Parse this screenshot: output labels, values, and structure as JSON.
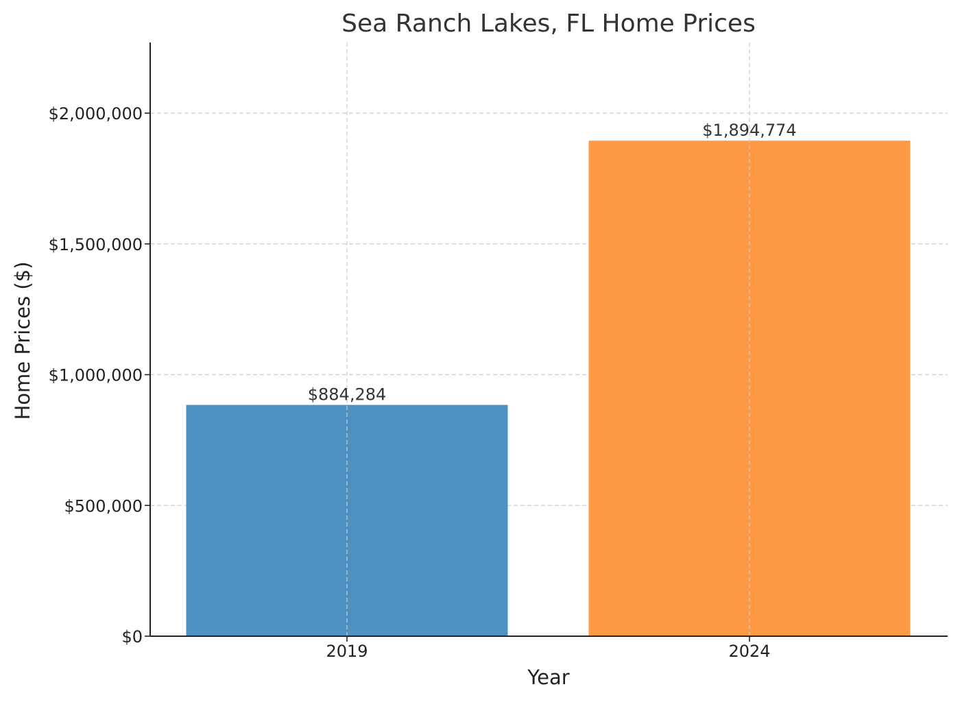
{
  "chart_data": {
    "type": "bar",
    "title": "Sea Ranch Lakes, FL Home Prices",
    "xlabel": "Year",
    "ylabel": "Home Prices ($)",
    "categories": [
      "2019",
      "2024"
    ],
    "values": [
      884284,
      1894774
    ],
    "value_labels": [
      "$884,284",
      "$1,894,774"
    ],
    "colors": [
      "#4c91c2",
      "#ff9943"
    ],
    "ylim": [
      0,
      2270000
    ],
    "yticks": [
      0,
      500000,
      1000000,
      1500000,
      2000000
    ],
    "ytick_labels": [
      "$0",
      "$500,000",
      "$1,000,000",
      "$1,500,000",
      "$2,000,000"
    ],
    "grid": true,
    "legend": "none"
  }
}
